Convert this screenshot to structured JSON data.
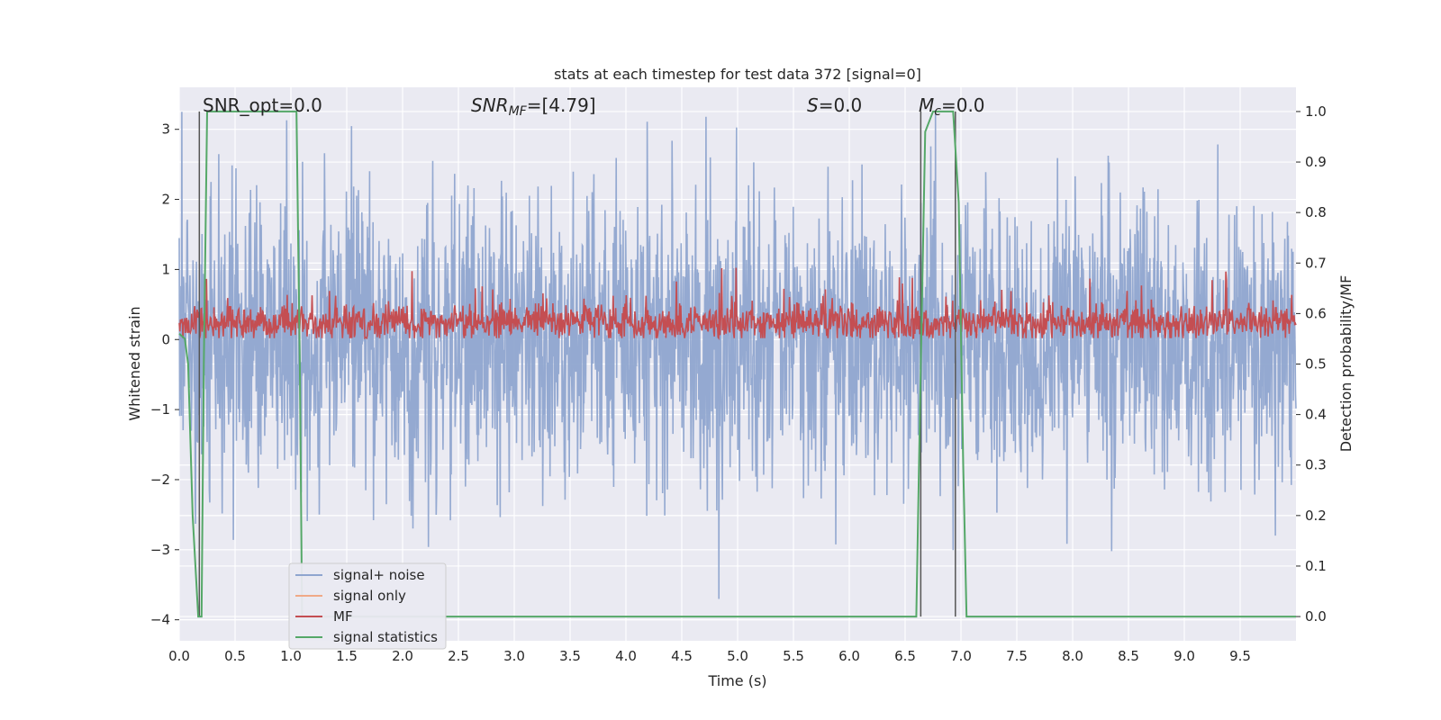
{
  "chart_data": {
    "type": "line",
    "title": "stats at each timestep for test data 372 [signal=0]",
    "xlabel": "Time (s)",
    "ylabel": "Whitened strain",
    "y2label": "Detection probability/MF",
    "xlim": [
      0.0,
      10.0
    ],
    "ylim": [
      -4.3,
      3.6
    ],
    "y2lim": [
      -0.048,
      1.048
    ],
    "x_ticks": [
      "0.0",
      "0.5",
      "1.0",
      "1.5",
      "2.0",
      "2.5",
      "3.0",
      "3.5",
      "4.0",
      "4.5",
      "5.0",
      "5.5",
      "6.0",
      "6.5",
      "7.0",
      "7.5",
      "8.0",
      "8.5",
      "9.0",
      "9.5"
    ],
    "y_ticks": [
      "3",
      "2",
      "1",
      "0",
      "−1",
      "−2",
      "−3",
      "−4"
    ],
    "y2_ticks": [
      "1.0",
      "0.9",
      "0.8",
      "0.7",
      "0.6",
      "0.5",
      "0.4",
      "0.3",
      "0.2",
      "0.1",
      "0.0"
    ],
    "grid": true,
    "legend_position": "lower-left",
    "annotations": {
      "snr_opt": "SNR_opt=0.0",
      "snr_mf_symbol": "SNR",
      "snr_mf_subscript": "MF",
      "snr_mf_value": "=[4.79]",
      "s_symbol": "S",
      "s_value": "=0.0",
      "mc_symbol": "M",
      "mc_subscript": "c",
      "mc_value": "=0.0"
    },
    "series": [
      {
        "name": "signal+ noise",
        "color": "#8fa5cf",
        "description_of_values": "whitened strain noise, roughly Gaussian spanning about -3.5 to 3.5 on left axis"
      },
      {
        "name": "signal only",
        "color": "#f0a987",
        "values": []
      },
      {
        "name": "MF",
        "color": "#c44e52",
        "description_of_values": "matched filter output near 0 to 0.5 on left axis"
      },
      {
        "name": "signal statistics",
        "color": "#55a868",
        "axis": "right",
        "x": [
          0.0,
          0.05,
          0.08,
          0.12,
          0.17,
          0.2,
          0.22,
          0.25,
          1.0,
          1.05,
          1.08,
          1.1,
          2.0,
          6.6,
          6.64,
          6.68,
          6.75,
          6.8,
          6.93,
          6.98,
          7.02,
          7.05,
          7.5,
          10.0
        ],
        "values": [
          0.56,
          0.55,
          0.5,
          0.2,
          0.0,
          0.0,
          0.5,
          1.0,
          1.0,
          1.0,
          0.5,
          0.0,
          0.0,
          0.0,
          0.5,
          0.96,
          1.0,
          1.0,
          1.0,
          0.82,
          0.3,
          0.0,
          0.0,
          0.0
        ]
      }
    ],
    "vertical_markers": [
      0.18,
      6.64,
      6.95
    ]
  }
}
